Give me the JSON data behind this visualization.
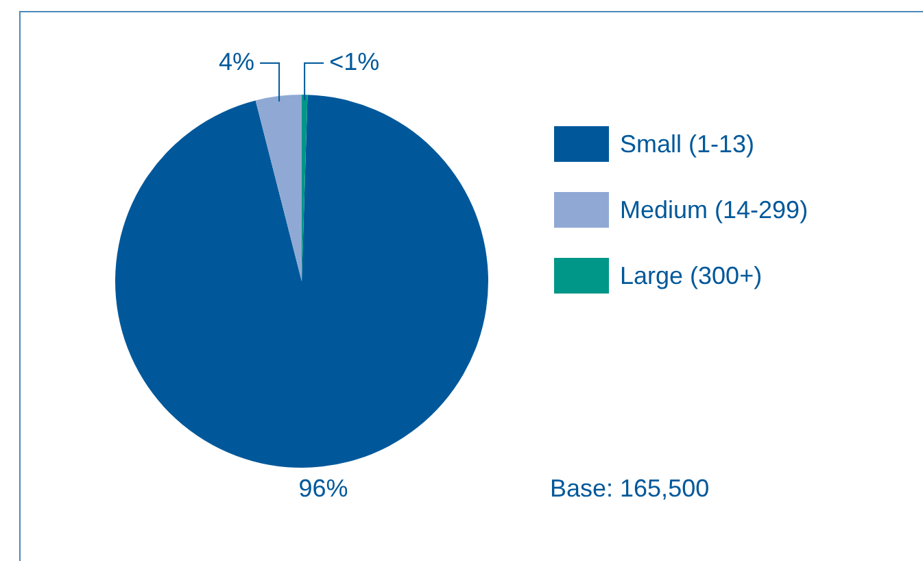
{
  "chart_data": {
    "type": "pie",
    "categories": [
      "Small (1-13)",
      "Medium (14-299)",
      "Large (300+)"
    ],
    "values": [
      96,
      4,
      0.5
    ],
    "colors": [
      "#00589a",
      "#8fa9d4",
      "#009688"
    ],
    "value_labels": [
      "96%",
      "4%",
      "<1%"
    ],
    "legend": "right",
    "annotations": [
      "Base: 165,500"
    ]
  }
}
